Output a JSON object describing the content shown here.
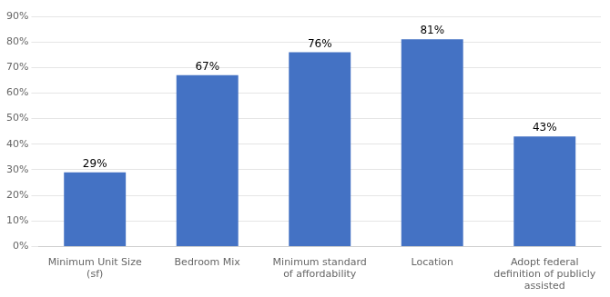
{
  "chart_data": {
    "type": "bar",
    "categories": [
      "Minimum Unit Size\n(sf)",
      "Bedroom Mix",
      "Minimum standard\nof affordability",
      "Location",
      "Adopt federal\ndefinition of publicly\nassisted"
    ],
    "values": [
      0.29,
      0.67,
      0.76,
      0.81,
      0.43
    ],
    "value_labels": [
      "29%",
      "67%",
      "76%",
      "81%",
      "43%"
    ],
    "data_labels": true,
    "color": "#4472c4",
    "ylim": [
      0,
      0.9
    ],
    "yticks": [
      {
        "value": 0.0,
        "label": "0%"
      },
      {
        "value": 0.1,
        "label": "10%"
      },
      {
        "value": 0.2,
        "label": "20%"
      },
      {
        "value": 0.3,
        "label": "30%"
      },
      {
        "value": 0.4,
        "label": "40%"
      },
      {
        "value": 0.5,
        "label": "50%"
      },
      {
        "value": 0.6,
        "label": "60%"
      },
      {
        "value": 0.7,
        "label": "70%"
      },
      {
        "value": 0.8,
        "label": "80%"
      },
      {
        "value": 0.9,
        "label": "90%"
      }
    ],
    "grid": true
  }
}
